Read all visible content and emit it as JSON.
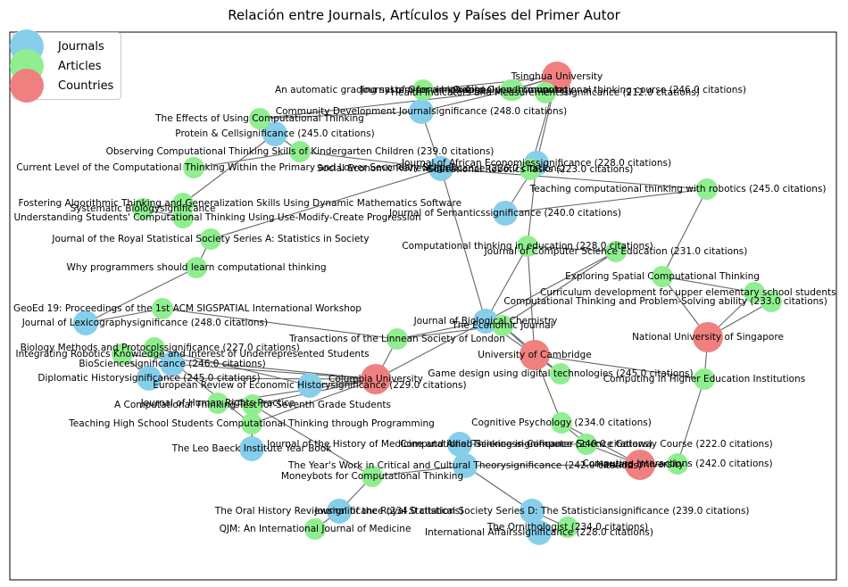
{
  "title": "Relación entre Journals, Artículos y Países del Primer Autor",
  "legend": [
    {
      "label": "Journals",
      "color": "#87ceeb"
    },
    {
      "label": "Articles",
      "color": "#90ee90"
    },
    {
      "label": "Countries",
      "color": "#f08080"
    }
  ],
  "nodes": [
    {
      "label": "Tsinghua University",
      "type": "country"
    },
    {
      "label": "Harvard University",
      "type": "country"
    },
    {
      "label": "Columbia University",
      "type": "country"
    },
    {
      "label": "University of Cambridge",
      "type": "country"
    },
    {
      "label": "National University of Singapore",
      "type": "country"
    },
    {
      "label": "Journal of African Economiessignificance (228.0 citations)",
      "type": "journal"
    },
    {
      "label": "Journal of Semanticssignificance (240.0 citations)",
      "type": "journal"
    },
    {
      "label": "Social Economic Reviewsignificance (226.0 citations)",
      "type": "journal"
    },
    {
      "label": "Journal of Lexicographysignificance (248.0 citations)",
      "type": "journal"
    },
    {
      "label": "European Review of Economic Historysignificance (229.0 citations)",
      "type": "journal"
    },
    {
      "label": "The Year's Work in Critical and Cultural Theorysignificance (242.0 citations)",
      "type": "journal"
    },
    {
      "label": "Community Development Journalsignificance (248.0 citations)",
      "type": "journal"
    },
    {
      "label": "Protein & Cellsignificance (245.0 citations)",
      "type": "journal"
    },
    {
      "label": "BioSciencesignificance (246.0 citations)",
      "type": "journal"
    },
    {
      "label": "Diplomatic Historysignificance (245.0 citations)",
      "type": "journal"
    },
    {
      "label": "The Oral History Reviewsignificance (234.0 citations)",
      "type": "journal"
    },
    {
      "label": "International Affairssignificance (228.0 citations)",
      "type": "journal"
    },
    {
      "label": "The Leo Baeck Institute Year Book",
      "type": "journal"
    },
    {
      "label": "Journal of the History of Medicine and Allied Sciencessignificance (240.0 citations)",
      "type": "journal"
    },
    {
      "label": "Journal of the Royal Statistical Society Series D: The Statisticiansignificance (239.0 citations)",
      "type": "journal"
    },
    {
      "label": "Journal of Biological Chemistry",
      "type": "journal"
    },
    {
      "label": "An automatic grading system for a high school-level computational thinking course (246.0 citations)",
      "type": "article"
    },
    {
      "label": "Observing Computational Thinking Skills of Kindergarten Children (239.0 citations)",
      "type": "article"
    },
    {
      "label": "Systematic Biologysignificance",
      "type": "article"
    },
    {
      "label": "Journal of the Royal Statistical Society Series A: Statistics in Society",
      "type": "article"
    },
    {
      "label": "Why programmers should learn computational thinking",
      "type": "article"
    },
    {
      "label": "GeoEd 19: Proceedings of the 1st ACM SIGSPATIAL International Workshop",
      "type": "article"
    },
    {
      "label": "Transactions of the Linnean Society of London",
      "type": "article"
    },
    {
      "label": "Biology Methods and Protocolssignificance (227.0 citations)",
      "type": "article"
    },
    {
      "label": "Teaching High School Students Computational Thinking through Programming",
      "type": "article"
    },
    {
      "label": "A Computational Thinking Test for Seventh Grade Students",
      "type": "article"
    },
    {
      "label": "Moneybots for Computational Thinking",
      "type": "article"
    },
    {
      "label": "QJM: An International Journal of Medicine",
      "type": "article"
    },
    {
      "label": "The Ornithologist (234.0 citations)",
      "type": "article"
    },
    {
      "label": "Computational Thinking and Problem-Solving ability (233.0 citations)",
      "type": "article"
    },
    {
      "label": "Computing Interactions (242.0 citations)",
      "type": "article"
    },
    {
      "label": "Game design using digital technologies (245.0 citations)",
      "type": "article"
    },
    {
      "label": "Curriculum development for upper elementary school students",
      "type": "article"
    },
    {
      "label": "Cognitive Psychology (234.0 citations)",
      "type": "article"
    },
    {
      "label": "Computational Thinking in Computer Science Gateway Course (222.0 citations)",
      "type": "article"
    },
    {
      "label": "Integrating Robotics Knowledge and Interest of Underrepresented Students",
      "type": "article"
    },
    {
      "label": "Fostering Algorithmic Thinking and Generalization Skills Using Dynamic Mathematics Software",
      "type": "article"
    },
    {
      "label": "Understanding Students' Computational Thinking Using Use-Modify-Create Progression",
      "type": "article"
    },
    {
      "label": "Current Level of the Computational Thinking Within the Primary and Lower Secondary School",
      "type": "article"
    },
    {
      "label": "The Effects of Using Computational Thinking",
      "type": "article"
    },
    {
      "label": "Journal of Open Innovation",
      "type": "article"
    },
    {
      "label": "Oxford Open Immunology",
      "type": "article"
    },
    {
      "label": "Health Indicators and Measurementssignificance (212.0 citations)",
      "type": "article"
    },
    {
      "label": "Educational Robotics Tasks (223.0 citations)",
      "type": "article"
    },
    {
      "label": "Teaching computational thinking with robotics (245.0 citations)",
      "type": "article"
    },
    {
      "label": "Computational thinking in education (228.0 citations)",
      "type": "article"
    },
    {
      "label": "Exploring Spatial Computational Thinking",
      "type": "article"
    },
    {
      "label": "Journal of Human Rights Practice",
      "type": "article"
    },
    {
      "label": "The Economic Journal",
      "type": "article"
    },
    {
      "label": "Computing in Higher Education Institutions",
      "type": "article"
    },
    {
      "label": "Journal of Computer Science Education (231.0 citations)",
      "type": "article"
    }
  ]
}
